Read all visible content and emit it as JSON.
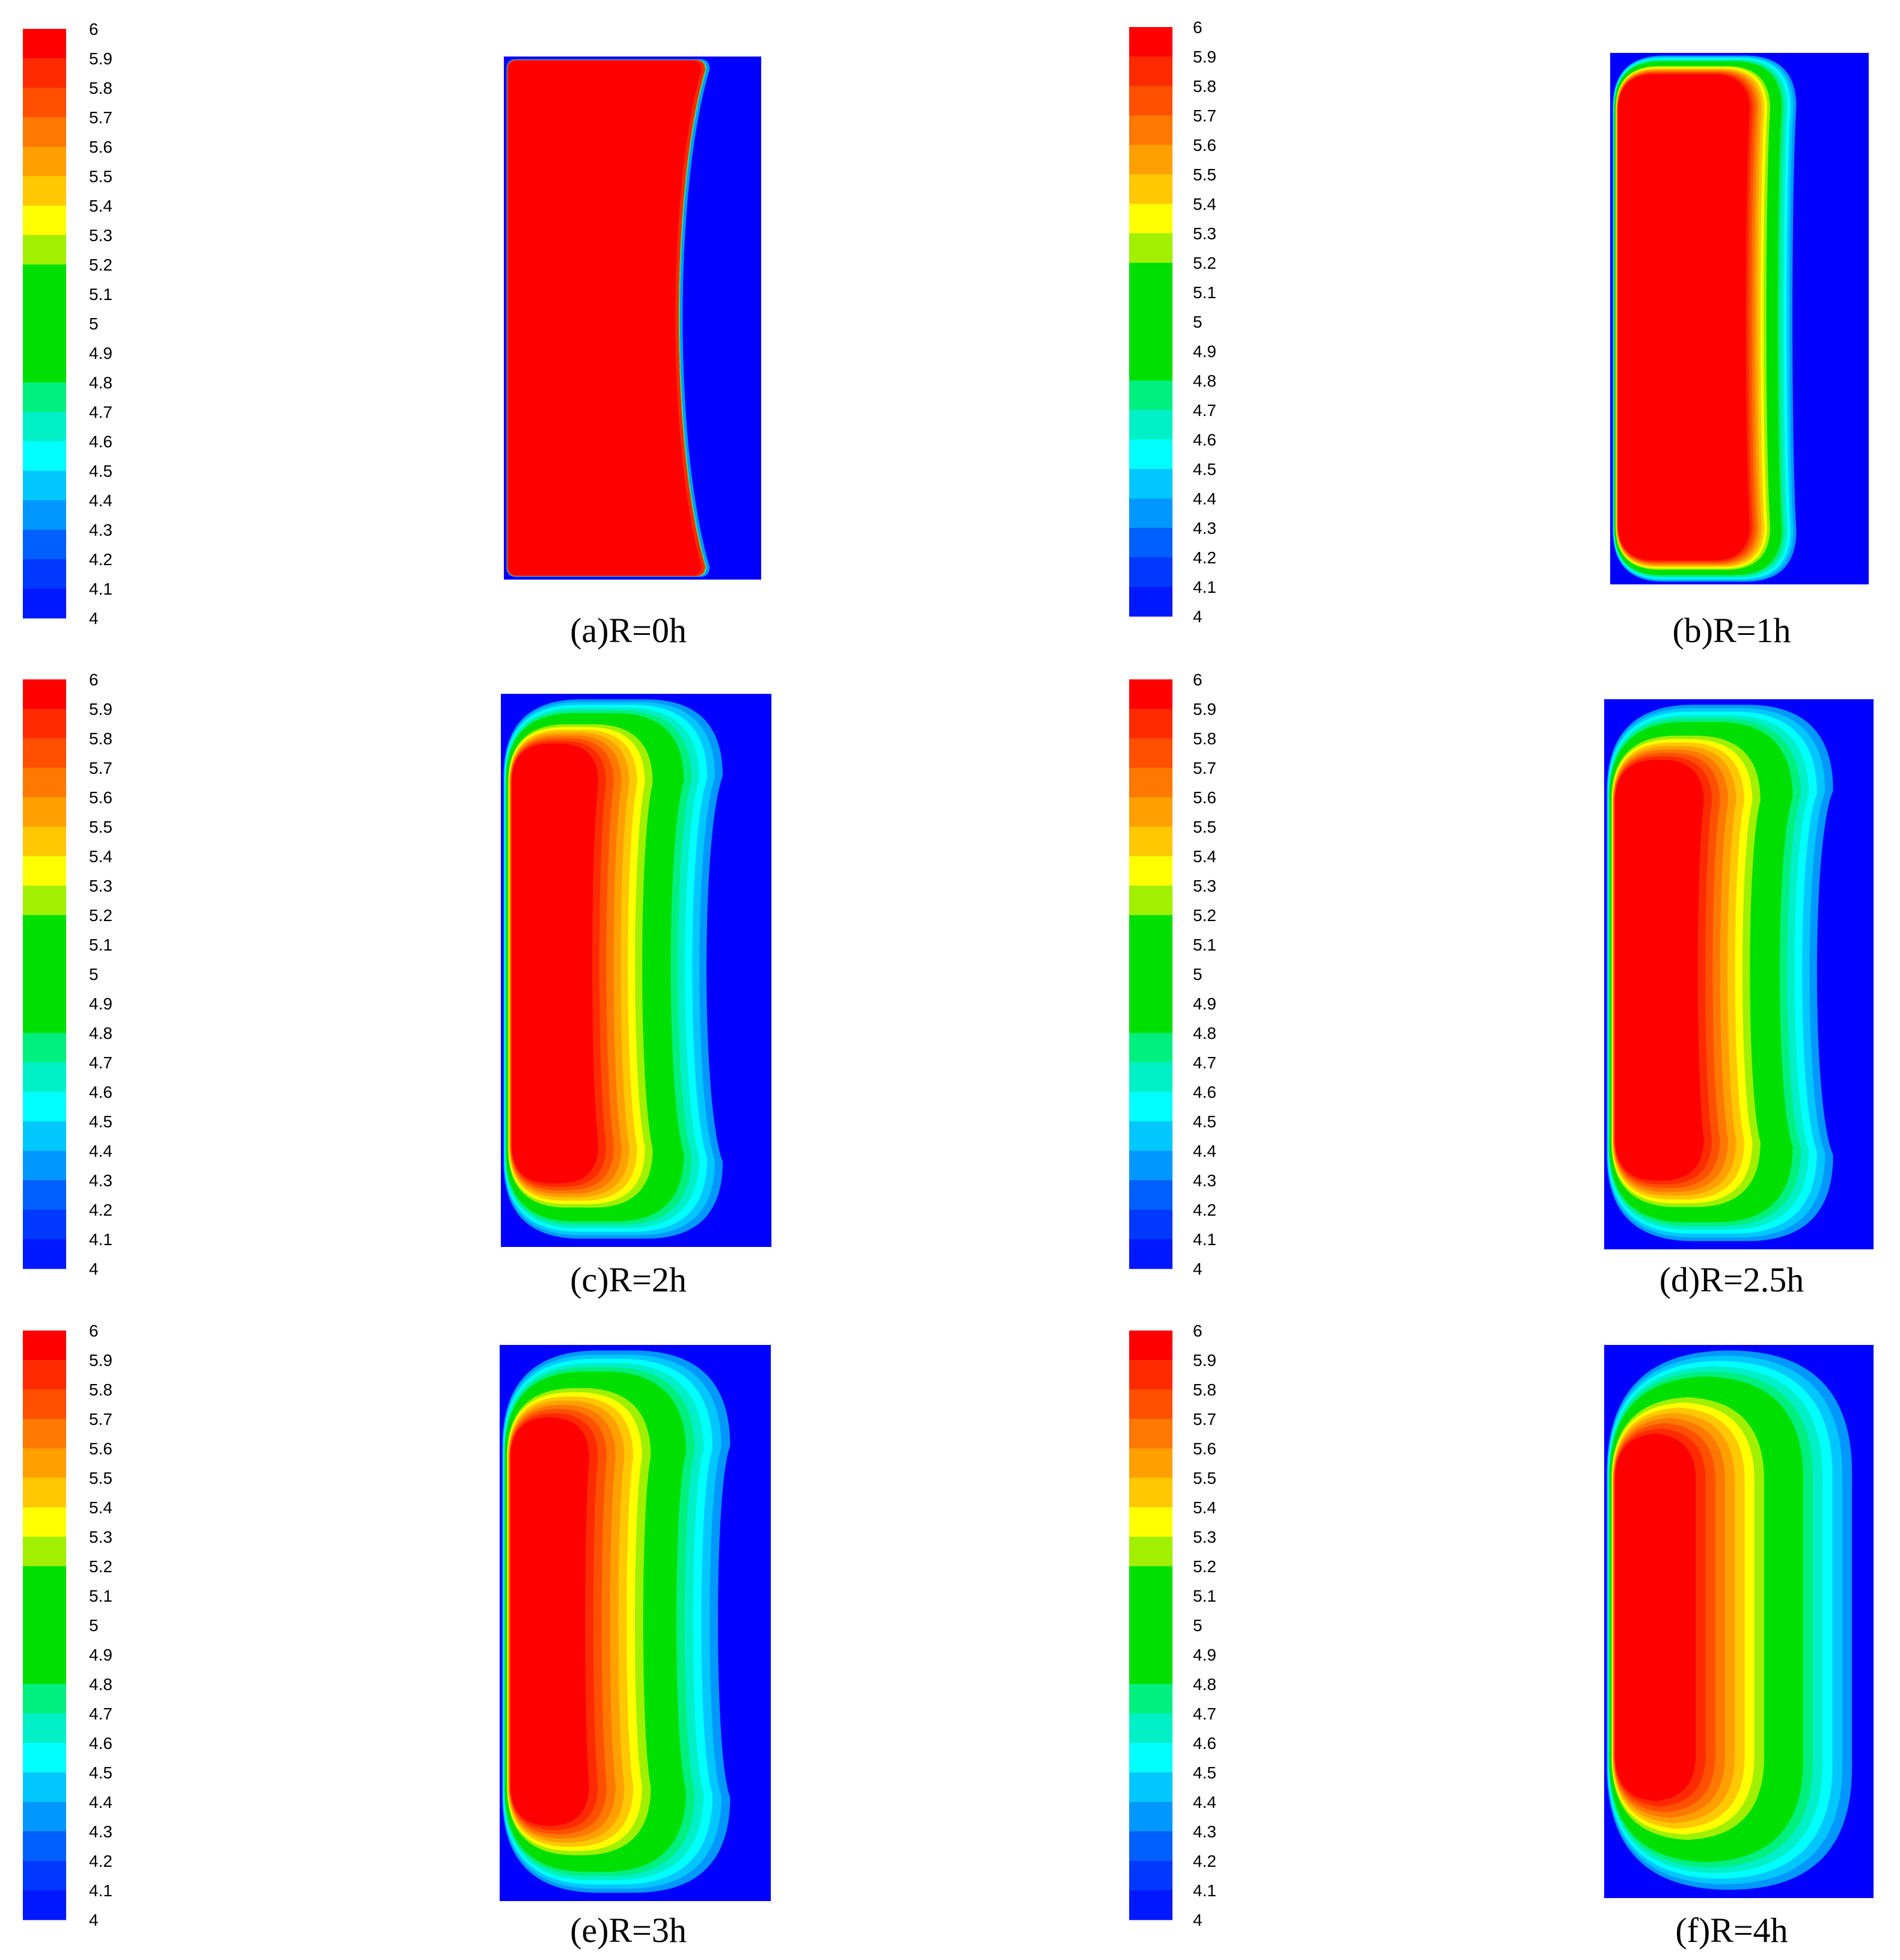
{
  "figure": {
    "colorbar": {
      "levels": [
        "6",
        "5.9",
        "5.8",
        "5.7",
        "5.6",
        "5.5",
        "5.4",
        "5.3",
        "5.2",
        "5.1",
        "5",
        "4.9",
        "4.8",
        "4.7",
        "4.6",
        "4.5",
        "4.4",
        "4.3",
        "4.2",
        "4.1",
        "4"
      ],
      "colors": [
        "#ff0000",
        "#ff2a00",
        "#ff5000",
        "#ff7800",
        "#ffa000",
        "#ffc800",
        "#ffff00",
        "#a0f000",
        "#00e000",
        "#00e000",
        "#00e000",
        "#00e000",
        "#00f080",
        "#00f0c8",
        "#00ffff",
        "#00c8ff",
        "#0098ff",
        "#0060ff",
        "#0038ff",
        "#0018ff"
      ]
    },
    "background_color": "#0000ff"
  },
  "chart_data": [
    {
      "type": "heatmap",
      "caption": "(a)R=0h",
      "cmin": 4,
      "cmax": 6
    },
    {
      "type": "heatmap",
      "caption": "(b)R=1h",
      "cmin": 4,
      "cmax": 6
    },
    {
      "type": "heatmap",
      "caption": "(c)R=2h",
      "cmin": 4,
      "cmax": 6
    },
    {
      "type": "heatmap",
      "caption": "(d)R=2.5h",
      "cmin": 4,
      "cmax": 6
    },
    {
      "type": "heatmap",
      "caption": "(e)R=3h",
      "cmin": 4,
      "cmax": 6
    },
    {
      "type": "heatmap",
      "caption": "(f)R=4h",
      "cmin": 4,
      "cmax": 6
    }
  ]
}
